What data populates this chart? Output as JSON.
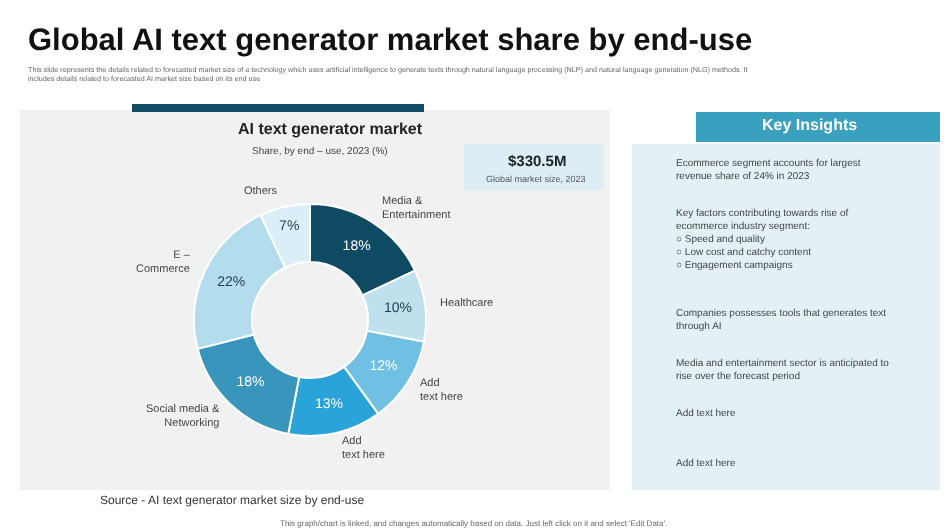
{
  "chart_data": {
    "type": "donut",
    "title": "Global AI text generator market share by end-use",
    "subtitle": "This slide represents the details related to forecasted market size of a technology which uses artificial intelligence to generate texts through natural language processing (NLP) and natural language generation (NLG) methods. It\nincludes details related to forecasted AI market size based on its end use",
    "categories": [
      "Media &\nEntertainment",
      "Healthcare",
      "Add\ntext here",
      "Add\ntext here",
      "Social media &\nNetworking",
      "E –\nCommerce",
      "Others"
    ],
    "values": [
      18,
      10,
      12,
      13,
      18,
      22,
      7
    ],
    "colors": [
      "#0f4a63",
      "#bfe1ee",
      "#6fc0e2",
      "#2aa3d9",
      "#3896bd",
      "#b3dcec",
      "#d9eef6"
    ],
    "value_labels": [
      "18%",
      "10%",
      "12%",
      "13%",
      "18%",
      "22%",
      "7%"
    ],
    "legend": false,
    "annotations": [
      "AI text generator market",
      "Share, by end – use, 2023 (%)",
      "$330.5M",
      "Global market size, 2023",
      "Key Insights",
      "Ecommerce segment accounts for largest\nrevenue share of 24% in 2023",
      "Key factors contributing towards rise of\necommerce industry segment:\n○ Speed and quality\n○ Low cost and catchy content\n○ Engagement campaigns",
      "Companies possesses tools that generates text\nthrough AI",
      "Media and entertainment sector is anticipated to\nrise over the forecast period",
      "Add text here",
      "Add text here",
      "Source - AI text generator market size by end-use",
      "This graph/chart is linked, and changes automatically based on data. Just left click on it and select 'Edit Data'."
    ]
  }
}
